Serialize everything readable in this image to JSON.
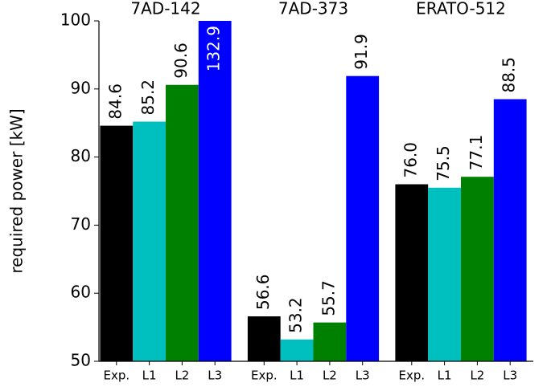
{
  "chart_data": {
    "type": "bar",
    "ylabel": "required power [kW]",
    "categories": [
      "7AD-142",
      "7AD-373",
      "ERATO-512"
    ],
    "series": [
      {
        "name": "Exp.",
        "color": "#000000",
        "values": [
          84.6,
          56.6,
          76.0
        ],
        "value_labels": [
          "84.6",
          "56.6",
          "76.0"
        ]
      },
      {
        "name": "L1",
        "color": "#00bfbf",
        "values": [
          85.2,
          53.2,
          75.5
        ],
        "value_labels": [
          "85.2",
          "53.2",
          "75.5"
        ]
      },
      {
        "name": "L2",
        "color": "#008000",
        "values": [
          90.6,
          55.7,
          77.1
        ],
        "value_labels": [
          "90.6",
          "55.7",
          "77.1"
        ]
      },
      {
        "name": "L3",
        "color": "#0000ff",
        "values": [
          132.9,
          91.9,
          88.5
        ],
        "value_labels": [
          "132.9",
          "91.9",
          "88.5"
        ]
      }
    ],
    "ylim": [
      50,
      100
    ],
    "yticks": [
      50,
      60,
      70,
      80,
      90,
      100
    ]
  }
}
